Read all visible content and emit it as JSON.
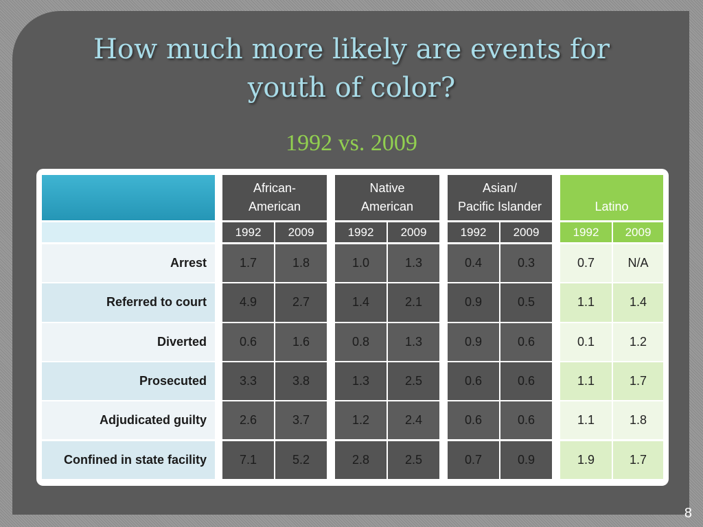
{
  "title": {
    "line1": "How much more likely are events for",
    "line2": "youth of color?"
  },
  "subtitle": "1992 vs. 2009",
  "page_number": "8",
  "groups": [
    {
      "label_line1": "African-",
      "label_line2": "American",
      "y1": "1992",
      "y2": "2009"
    },
    {
      "label_line1": "Native",
      "label_line2": "American",
      "y1": "1992",
      "y2": "2009"
    },
    {
      "label_line1": "Asian/",
      "label_line2": "Pacific Islander",
      "y1": "1992",
      "y2": "2009"
    },
    {
      "label_line1": "",
      "label_line2": "Latino",
      "y1": "1992",
      "y2": "2009"
    }
  ],
  "rows": [
    {
      "label": "Arrest",
      "values": [
        "1.7",
        "1.8",
        "1.0",
        "1.3",
        "0.4",
        "0.3",
        "0.7",
        "N/A"
      ]
    },
    {
      "label": "Referred to court",
      "values": [
        "4.9",
        "2.7",
        "1.4",
        "2.1",
        "0.9",
        "0.5",
        "1.1",
        "1.4"
      ]
    },
    {
      "label": "Diverted",
      "values": [
        "0.6",
        "1.6",
        "0.8",
        "1.3",
        "0.9",
        "0.6",
        "0.1",
        "1.2"
      ]
    },
    {
      "label": "Prosecuted",
      "values": [
        "3.3",
        "3.8",
        "1.3",
        "2.5",
        "0.6",
        "0.6",
        "1.1",
        "1.7"
      ]
    },
    {
      "label": "Adjudicated guilty",
      "values": [
        "2.6",
        "3.7",
        "1.2",
        "2.4",
        "0.6",
        "0.6",
        "1.1",
        "1.8"
      ]
    },
    {
      "label": "Confined in state facility",
      "values": [
        "7.1",
        "5.2",
        "2.8",
        "2.5",
        "0.7",
        "0.9",
        "1.9",
        "1.7"
      ]
    }
  ],
  "colors": {
    "title": "#a9dce8",
    "subtitle": "#92d050",
    "latino_header": "#92d050",
    "blue_header": "#2ea6c8"
  }
}
